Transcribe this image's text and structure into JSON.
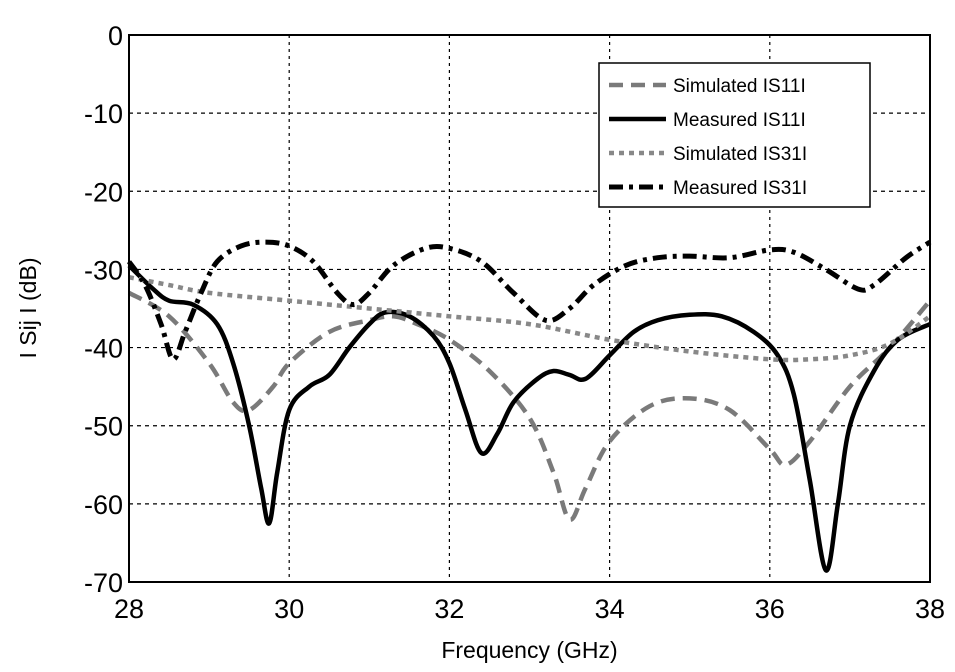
{
  "chart_data": {
    "type": "line",
    "title": "",
    "xlabel": "Frequency (GHz)",
    "ylabel": "I Sij I (dB)",
    "xlim": [
      28,
      38
    ],
    "ylim": [
      -70,
      0
    ],
    "xticks": [
      28,
      30,
      32,
      34,
      36,
      38
    ],
    "yticks": [
      0,
      -10,
      -20,
      -30,
      -40,
      -50,
      -60,
      -70
    ],
    "xtick_labels": [
      "28",
      "30",
      "32",
      "34",
      "36",
      "38"
    ],
    "ytick_labels": [
      "0",
      "-10",
      "-20",
      "-30",
      "-40",
      "-50",
      "-60",
      "-70"
    ],
    "grid": true,
    "legend_position": "top-right",
    "series": [
      {
        "name": "Simulated IS11I",
        "color": "#7a7a7a",
        "style": "dashed",
        "x": [
          28,
          28.5,
          29,
          29.3,
          29.5,
          29.8,
          30,
          30.5,
          31,
          31.3,
          31.6,
          32,
          32.5,
          33,
          33.3,
          33.5,
          33.7,
          34,
          34.5,
          35,
          35.5,
          36,
          36.2,
          36.5,
          37,
          37.5,
          38
        ],
        "y": [
          -33,
          -36,
          -42,
          -47,
          -48,
          -45,
          -42,
          -38,
          -36.5,
          -36,
          -37,
          -39,
          -43,
          -49,
          -56,
          -62,
          -58,
          -52,
          -47.5,
          -46.5,
          -48,
          -53,
          -55,
          -52,
          -45,
          -40,
          -34
        ]
      },
      {
        "name": "Measured IS11I",
        "color": "#000000",
        "style": "solid",
        "x": [
          28,
          28.3,
          28.5,
          28.8,
          29.1,
          29.3,
          29.5,
          29.65,
          29.75,
          29.85,
          30,
          30.25,
          30.5,
          30.75,
          31,
          31.2,
          31.5,
          31.8,
          32,
          32.2,
          32.4,
          32.6,
          32.8,
          33.1,
          33.3,
          33.5,
          33.7,
          34,
          34.3,
          34.6,
          35,
          35.4,
          35.8,
          36.1,
          36.3,
          36.5,
          36.7,
          36.85,
          37,
          37.3,
          37.6,
          38
        ],
        "y": [
          -29.5,
          -32.5,
          -34,
          -34.5,
          -37,
          -42,
          -50,
          -58,
          -62.5,
          -56,
          -48,
          -45,
          -43.5,
          -40,
          -37,
          -35.5,
          -36,
          -38.5,
          -42,
          -48,
          -53.5,
          -51,
          -47,
          -44,
          -43,
          -43.5,
          -44,
          -41,
          -38,
          -36.5,
          -35.8,
          -36,
          -38,
          -41,
          -46,
          -57,
          -68.5,
          -60,
          -50,
          -43,
          -39,
          -37
        ]
      },
      {
        "name": "Simulated IS31I",
        "color": "#888888",
        "style": "dotted",
        "x": [
          28,
          28.5,
          29,
          30,
          31,
          32,
          33,
          34,
          35,
          36,
          36.5,
          37,
          37.5,
          38
        ],
        "y": [
          -31,
          -32,
          -33,
          -34,
          -35,
          -36,
          -37,
          -39,
          -40.5,
          -41.5,
          -41.5,
          -41,
          -39.5,
          -36
        ]
      },
      {
        "name": "Measured IS31I",
        "color": "#000000",
        "style": "dash-dot",
        "x": [
          28,
          28.2,
          28.4,
          28.55,
          28.7,
          28.9,
          29.1,
          29.4,
          29.7,
          30,
          30.3,
          30.6,
          30.8,
          31,
          31.3,
          31.7,
          32,
          32.4,
          32.8,
          33.2,
          33.5,
          33.8,
          34.2,
          34.6,
          35,
          35.5,
          36,
          36.3,
          36.7,
          37.1,
          37.3,
          37.7,
          38
        ],
        "y": [
          -29,
          -32,
          -37,
          -41.5,
          -38,
          -33,
          -29,
          -27,
          -26.5,
          -27,
          -29,
          -33,
          -34.5,
          -33,
          -29.5,
          -27.3,
          -27.3,
          -29,
          -33,
          -36.5,
          -35,
          -32,
          -29.5,
          -28.5,
          -28.3,
          -28.5,
          -27.5,
          -27.8,
          -30,
          -32.5,
          -32,
          -28.5,
          -26.5
        ]
      }
    ]
  }
}
